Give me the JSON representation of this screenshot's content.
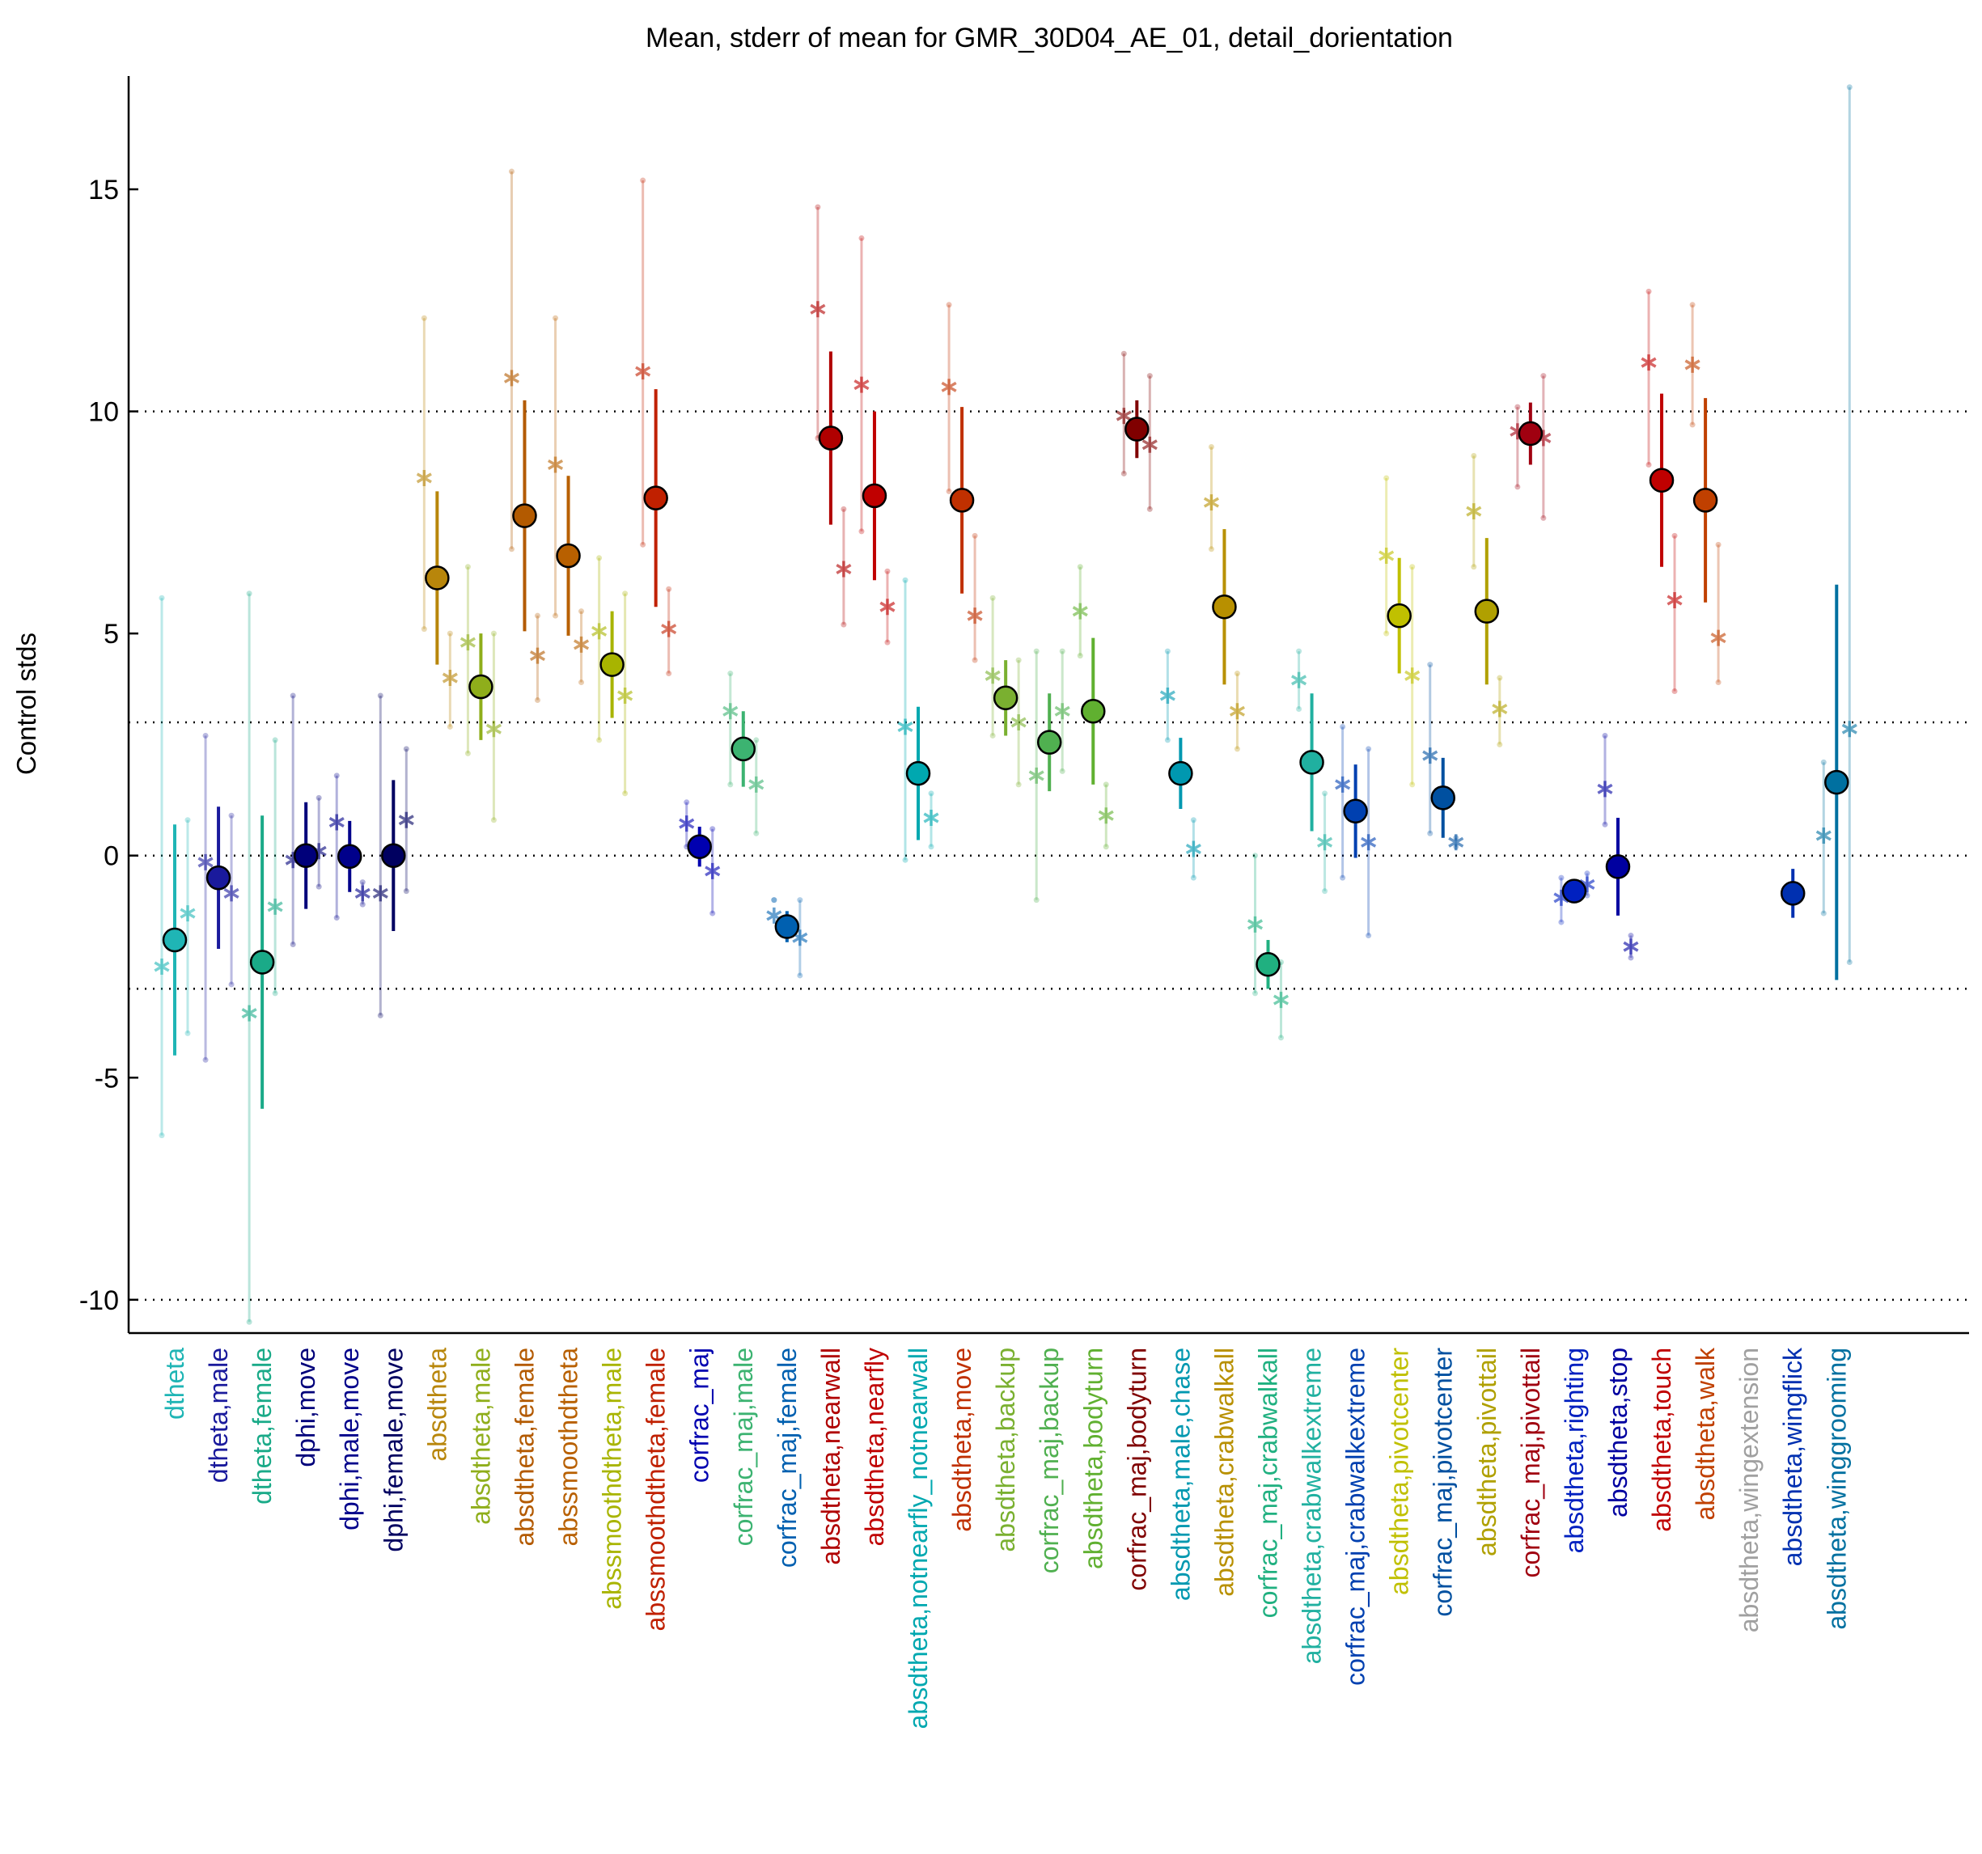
{
  "chart_data": {
    "type": "errorbar",
    "title": "Mean, stderr of mean for GMR_30D04_AE_01, detail_dorientation",
    "y_label": "Control stds",
    "categories": [
      "dtheta",
      "dtheta,male",
      "dtheta,female",
      "dphi,move",
      "dphi,male,move",
      "dphi,female,move",
      "absdtheta",
      "absdtheta,male",
      "absdtheta,female",
      "abssmoothdtheta",
      "abssmoothdtheta,male",
      "abssmoothdtheta,female",
      "corfrac_maj",
      "corfrac_maj,male",
      "corfrac_maj,female",
      "absdtheta,nearwall",
      "absdtheta,nearfly",
      "absdtheta,notnearfly_notnearwall",
      "absdtheta,move",
      "absdtheta,backup",
      "corfrac_maj,backup",
      "absdtheta,bodyturn",
      "corfrac_maj,bodyturn",
      "absdtheta,male,chase",
      "absdtheta,crabwalkall",
      "corfrac_maj,crabwalkall",
      "absdtheta,crabwalkextreme",
      "corfrac_maj,crabwalkextreme",
      "absdtheta,pivotcenter",
      "corfrac_maj,pivotcenter",
      "absdtheta,pivottail",
      "corfrac_maj,pivottail",
      "absdtheta,righting",
      "absdtheta,stop",
      "absdtheta,touch",
      "absdtheta,walk",
      "absdtheta,wingextension",
      "absdtheta,wingflick",
      "absdtheta,winggrooming"
    ],
    "colors": [
      "#1fb5b5",
      "#1a1a9c",
      "#1aaa88",
      "#00007a",
      "#00008b",
      "#000060",
      "#b8860b",
      "#8fae1b",
      "#b35a00",
      "#b86000",
      "#a8b400",
      "#c02000",
      "#0000b0",
      "#3cb371",
      "#0060b0",
      "#b00000",
      "#c00000",
      "#00a8b0",
      "#c03000",
      "#7ab030",
      "#50b050",
      "#60b030",
      "#800000",
      "#0098b0",
      "#b89000",
      "#20b080",
      "#20b0a0",
      "#0040b0",
      "#c0c000",
      "#0050a0",
      "#b0a000",
      "#a00010",
      "#0020c0",
      "#0000a0",
      "#c00000",
      "#c04000",
      "#a0a0a0",
      "#0030b0",
      "#0070a0"
    ],
    "means": [
      -1.9,
      -0.5,
      -2.4,
      0,
      -0.02,
      0,
      6.25,
      3.8,
      7.65,
      6.75,
      4.3,
      8.05,
      0.2,
      2.4,
      -1.6,
      9.4,
      8.1,
      1.85,
      8.0,
      3.55,
      2.55,
      3.25,
      9.6,
      1.85,
      5.6,
      -2.45,
      2.1,
      1.0,
      5.4,
      1.3,
      5.5,
      9.5,
      -0.8,
      -0.25,
      8.45,
      8.0,
      null,
      -0.85,
      1.65
    ],
    "stderr": [
      2.6,
      1.6,
      3.3,
      1.2,
      0.8,
      1.7,
      1.95,
      1.2,
      2.6,
      1.8,
      1.2,
      2.45,
      0.45,
      0.85,
      0.35,
      1.95,
      1.9,
      1.5,
      2.1,
      0.85,
      1.1,
      1.65,
      0.65,
      0.8,
      1.75,
      0.55,
      1.55,
      1.05,
      1.3,
      0.9,
      1.65,
      0.7,
      0.15,
      1.1,
      1.95,
      2.3,
      null,
      0.55,
      4.45
    ],
    "left_values": [
      -2.5,
      -0.15,
      -3.55,
      -0.1,
      0.75,
      -0.85,
      8.5,
      4.8,
      10.75,
      8.8,
      5.05,
      10.9,
      0.72,
      3.25,
      -1.35,
      12.3,
      10.6,
      2.9,
      10.55,
      4.05,
      1.8,
      5.5,
      9.9,
      3.6,
      7.95,
      -1.55,
      3.95,
      1.6,
      6.75,
      2.25,
      7.75,
      9.55,
      -0.95,
      1.5,
      11.1,
      11.05,
      null,
      null,
      0.45
    ],
    "left_low": [
      -6.3,
      -4.6,
      -10.5,
      -2.0,
      -1.4,
      -3.6,
      5.1,
      2.3,
      6.9,
      5.4,
      2.6,
      7.0,
      0.2,
      1.6,
      -1.0,
      9.4,
      7.3,
      -0.1,
      8.2,
      2.7,
      -1.0,
      4.5,
      8.6,
      2.6,
      6.9,
      -3.1,
      3.3,
      -0.5,
      5.0,
      0.5,
      6.5,
      8.3,
      -1.5,
      0.7,
      8.8,
      9.7,
      null,
      null,
      -1.3
    ],
    "left_high": [
      5.8,
      2.7,
      5.9,
      3.6,
      1.8,
      3.6,
      12.1,
      6.5,
      15.4,
      12.1,
      6.7,
      15.2,
      1.2,
      4.1,
      -1.0,
      14.6,
      13.9,
      6.2,
      12.4,
      5.8,
      4.6,
      6.5,
      11.3,
      4.6,
      9.2,
      0.0,
      4.6,
      2.9,
      8.5,
      4.3,
      9.0,
      10.1,
      -0.5,
      2.7,
      12.7,
      12.4,
      null,
      null,
      2.1
    ],
    "right_values": [
      -1.3,
      -0.85,
      -1.15,
      0.1,
      -0.85,
      0.8,
      4.0,
      2.85,
      4.5,
      4.75,
      3.6,
      5.1,
      -0.35,
      1.6,
      -1.85,
      6.45,
      5.6,
      0.85,
      5.4,
      3.0,
      3.25,
      0.9,
      9.25,
      0.15,
      3.25,
      -3.25,
      0.3,
      0.3,
      4.05,
      0.3,
      3.3,
      9.4,
      -0.65,
      -2.05,
      5.75,
      4.9,
      null,
      null,
      2.85
    ],
    "right_low": [
      -4.0,
      -2.9,
      -3.1,
      -0.7,
      -1.1,
      -0.8,
      2.9,
      0.8,
      3.5,
      3.9,
      1.4,
      4.1,
      -1.3,
      0.5,
      -2.7,
      5.2,
      4.8,
      0.2,
      4.4,
      1.6,
      1.9,
      0.2,
      7.8,
      -0.5,
      2.4,
      -4.1,
      -0.8,
      -1.8,
      1.6,
      0.2,
      2.5,
      7.6,
      -0.9,
      -2.3,
      3.7,
      3.9,
      null,
      null,
      -2.4
    ],
    "right_high": [
      0.8,
      0.9,
      2.6,
      1.3,
      -0.6,
      2.4,
      5.0,
      5.0,
      5.4,
      5.5,
      5.9,
      6.0,
      0.6,
      2.6,
      -1.0,
      7.8,
      6.4,
      1.4,
      7.2,
      4.4,
      4.6,
      1.6,
      10.8,
      0.8,
      4.1,
      -2.4,
      1.4,
      2.4,
      6.5,
      0.4,
      4.0,
      10.8,
      -0.4,
      -1.8,
      7.2,
      7.0,
      null,
      null,
      17.3
    ],
    "ylim": [
      -10.75,
      17.55
    ],
    "yticks": [
      -10,
      -5,
      0,
      5,
      10,
      15
    ],
    "reference_lines": [
      -10,
      -3,
      0,
      3,
      10
    ]
  }
}
